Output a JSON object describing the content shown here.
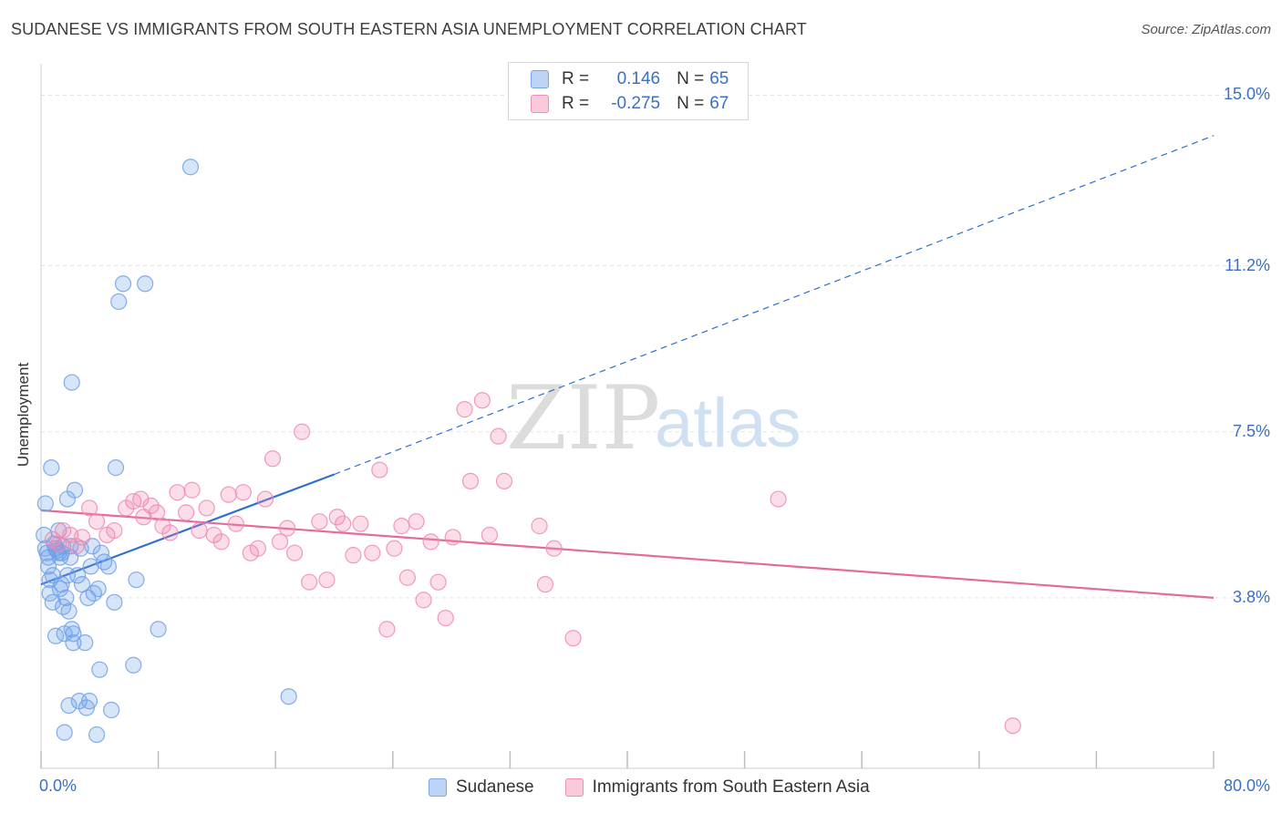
{
  "header": {
    "title": "SUDANESE VS IMMIGRANTS FROM SOUTH EASTERN ASIA UNEMPLOYMENT CORRELATION CHART",
    "source": "Source: ZipAtlas.com"
  },
  "watermark": {
    "zip": "ZIP",
    "atlas": "atlas"
  },
  "stats": [
    {
      "r_label": "R =",
      "r_value": "0.146",
      "n_label": "N =",
      "n_value": "65",
      "color": "#6fa0e8"
    },
    {
      "r_label": "R =",
      "r_value": "-0.275",
      "n_label": "N =",
      "n_value": "67",
      "color": "#f08ab0"
    }
  ],
  "chart_data": {
    "type": "scatter",
    "title": "SUDANESE VS IMMIGRANTS FROM SOUTH EASTERN ASIA UNEMPLOYMENT CORRELATION CHART",
    "xlabel": "",
    "ylabel": "Unemployment",
    "xlim": [
      0,
      80
    ],
    "ylim": [
      0,
      15.7
    ],
    "x_tick_labels": [
      "0.0%",
      "80.0%"
    ],
    "y_ticks": [
      3.8,
      7.5,
      11.2,
      15.0
    ],
    "y_tick_labels": [
      "3.8%",
      "7.5%",
      "11.2%",
      "15.0%"
    ],
    "grid": "horizontal dashed",
    "legend_position": "bottom-center",
    "series": [
      {
        "name": "Sudanese",
        "color": "#6fa0e8",
        "line_color": "#2f6fd0",
        "trend": {
          "x_start": 0,
          "y_start": 4.1,
          "x_solid_end": 20,
          "y_solid_end": 6.55,
          "x_end": 80,
          "y_end": 14.1
        },
        "points": [
          [
            0.3,
            5.9
          ],
          [
            0.2,
            5.2
          ],
          [
            0.3,
            4.9
          ],
          [
            0.4,
            4.8
          ],
          [
            0.5,
            4.5
          ],
          [
            0.6,
            4.2
          ],
          [
            0.6,
            3.9
          ],
          [
            0.7,
            6.7
          ],
          [
            0.8,
            4.3
          ],
          [
            0.8,
            3.7
          ],
          [
            0.9,
            5.0
          ],
          [
            1.0,
            4.9
          ],
          [
            1.1,
            4.85
          ],
          [
            1.2,
            4.8
          ],
          [
            1.3,
            4.7
          ],
          [
            1.4,
            4.1
          ],
          [
            1.5,
            3.6
          ],
          [
            1.6,
            3.0
          ],
          [
            1.7,
            3.8
          ],
          [
            1.8,
            6.0
          ],
          [
            1.0,
            2.95
          ],
          [
            1.2,
            5.3
          ],
          [
            1.3,
            4.0
          ],
          [
            1.5,
            4.95
          ],
          [
            1.6,
            0.8
          ],
          [
            1.8,
            4.3
          ],
          [
            1.9,
            1.4
          ],
          [
            2.0,
            4.95
          ],
          [
            2.1,
            3.1
          ],
          [
            2.2,
            2.8
          ],
          [
            2.0,
            4.7
          ],
          [
            2.2,
            3.0
          ],
          [
            2.1,
            8.6
          ],
          [
            2.3,
            6.2
          ],
          [
            2.5,
            4.3
          ],
          [
            2.6,
            1.5
          ],
          [
            2.7,
            4.9
          ],
          [
            2.8,
            4.1
          ],
          [
            3.0,
            2.8
          ],
          [
            3.1,
            1.35
          ],
          [
            3.2,
            3.8
          ],
          [
            3.3,
            1.5
          ],
          [
            3.4,
            4.5
          ],
          [
            3.5,
            4.95
          ],
          [
            3.6,
            3.9
          ],
          [
            3.8,
            0.75
          ],
          [
            3.9,
            4.0
          ],
          [
            4.0,
            2.2
          ],
          [
            4.1,
            4.8
          ],
          [
            4.3,
            4.6
          ],
          [
            4.6,
            4.5
          ],
          [
            4.8,
            1.3
          ],
          [
            5.0,
            3.7
          ],
          [
            5.1,
            6.7
          ],
          [
            5.3,
            10.4
          ],
          [
            5.6,
            10.8
          ],
          [
            6.3,
            2.3
          ],
          [
            6.5,
            4.2
          ],
          [
            7.1,
            10.8
          ],
          [
            8.0,
            3.1
          ],
          [
            10.2,
            13.4
          ],
          [
            16.9,
            1.6
          ],
          [
            0.5,
            4.7
          ],
          [
            1.4,
            4.8
          ],
          [
            1.9,
            3.5
          ]
        ]
      },
      {
        "name": "Immigrants from South Eastern Asia",
        "color": "#f08ab0",
        "line_color": "#e36c9a",
        "trend": {
          "x_start": 0,
          "y_start": 5.75,
          "x_end": 80,
          "y_end": 3.8
        },
        "points": [
          [
            0.8,
            5.1
          ],
          [
            1.2,
            5.0
          ],
          [
            1.5,
            5.3
          ],
          [
            2.0,
            5.2
          ],
          [
            2.4,
            4.95
          ],
          [
            2.8,
            5.15
          ],
          [
            3.3,
            5.8
          ],
          [
            3.8,
            5.5
          ],
          [
            4.5,
            5.2
          ],
          [
            5.0,
            5.3
          ],
          [
            5.8,
            5.8
          ],
          [
            6.3,
            5.95
          ],
          [
            6.8,
            6.0
          ],
          [
            7.0,
            5.6
          ],
          [
            7.5,
            5.85
          ],
          [
            7.9,
            5.7
          ],
          [
            8.3,
            5.4
          ],
          [
            8.8,
            5.25
          ],
          [
            9.3,
            6.15
          ],
          [
            9.9,
            5.7
          ],
          [
            10.3,
            6.2
          ],
          [
            10.8,
            5.3
          ],
          [
            11.3,
            5.8
          ],
          [
            11.8,
            5.2
          ],
          [
            12.3,
            5.05
          ],
          [
            12.8,
            6.1
          ],
          [
            13.3,
            5.45
          ],
          [
            13.8,
            6.15
          ],
          [
            14.3,
            4.8
          ],
          [
            14.8,
            4.9
          ],
          [
            15.3,
            6.0
          ],
          [
            15.8,
            6.9
          ],
          [
            16.3,
            5.05
          ],
          [
            16.8,
            5.35
          ],
          [
            17.3,
            4.8
          ],
          [
            17.8,
            7.5
          ],
          [
            18.3,
            4.15
          ],
          [
            19.0,
            5.5
          ],
          [
            19.5,
            4.2
          ],
          [
            20.2,
            5.6
          ],
          [
            20.6,
            5.45
          ],
          [
            21.3,
            4.75
          ],
          [
            21.8,
            5.45
          ],
          [
            22.6,
            4.8
          ],
          [
            23.1,
            6.65
          ],
          [
            23.6,
            3.1
          ],
          [
            24.1,
            4.9
          ],
          [
            24.6,
            5.4
          ],
          [
            25.0,
            4.25
          ],
          [
            25.6,
            5.5
          ],
          [
            26.1,
            3.75
          ],
          [
            26.6,
            5.05
          ],
          [
            27.1,
            4.15
          ],
          [
            27.6,
            3.35
          ],
          [
            28.1,
            5.15
          ],
          [
            28.9,
            8.0
          ],
          [
            29.3,
            6.4
          ],
          [
            30.1,
            8.2
          ],
          [
            31.2,
            7.4
          ],
          [
            30.6,
            5.2
          ],
          [
            31.6,
            6.4
          ],
          [
            34.0,
            5.4
          ],
          [
            34.4,
            4.1
          ],
          [
            35.0,
            4.9
          ],
          [
            36.3,
            2.9
          ],
          [
            50.3,
            6.0
          ],
          [
            66.3,
            0.95
          ]
        ]
      }
    ]
  },
  "legend": [
    {
      "label": "Sudanese",
      "color": "#6fa0e8"
    },
    {
      "label": "Immigrants from South Eastern Asia",
      "color": "#f08ab0"
    }
  ]
}
